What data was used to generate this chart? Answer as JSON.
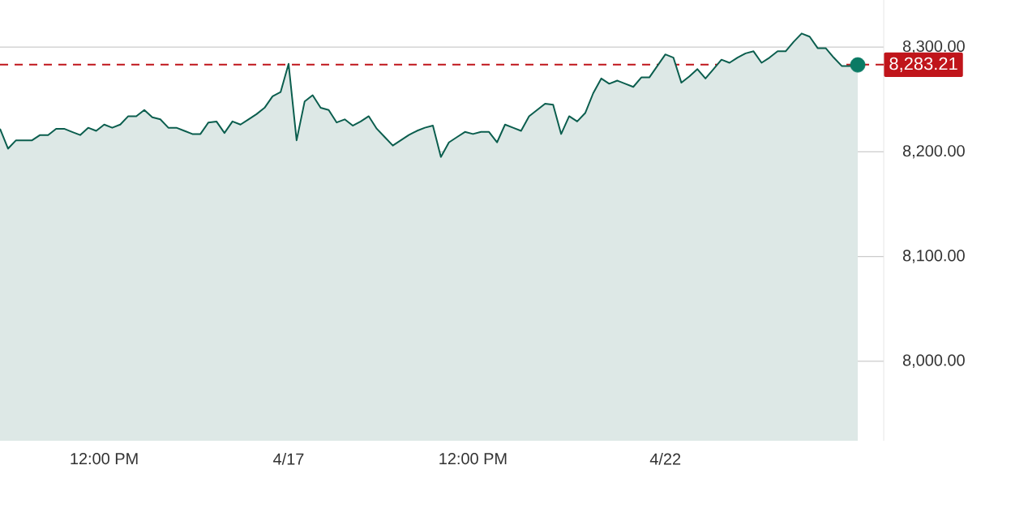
{
  "chart_data": {
    "type": "area",
    "categories": [
      null,
      null,
      null,
      null,
      null,
      null,
      null,
      null,
      null,
      null,
      null,
      null,
      null,
      "12:00 PM",
      null,
      null,
      null,
      null,
      null,
      null,
      null,
      null,
      null,
      null,
      null,
      null,
      null,
      null,
      null,
      null,
      null,
      null,
      null,
      null,
      null,
      null,
      "4/17",
      null,
      null,
      null,
      null,
      null,
      null,
      null,
      null,
      null,
      null,
      null,
      null,
      null,
      null,
      null,
      null,
      null,
      null,
      null,
      null,
      null,
      null,
      "12:00 PM",
      null,
      null,
      null,
      null,
      null,
      null,
      null,
      null,
      null,
      null,
      null,
      null,
      null,
      null,
      null,
      null,
      null,
      null,
      null,
      null,
      null,
      null,
      null,
      "4/22",
      null,
      null,
      null,
      null,
      null,
      null,
      null,
      null,
      null,
      null,
      null,
      null,
      null,
      null,
      null,
      null,
      null,
      null,
      null,
      null,
      null,
      null,
      null,
      null
    ],
    "series": [
      {
        "color": "#0b5e4e",
        "values": [
          8222,
          8203,
          8211,
          8211,
          8211,
          8216,
          8216,
          8222,
          8222,
          8219,
          8216,
          8223,
          8220,
          8226,
          8223,
          8226,
          8234,
          8234,
          8240,
          8233,
          8231,
          8223,
          8223,
          8220,
          8217,
          8217,
          8228,
          8229,
          8218,
          8229,
          8226,
          8231,
          8236,
          8242,
          8253,
          8257,
          8284,
          8211,
          8248,
          8254,
          8242,
          8240,
          8228,
          8231,
          8225,
          8229,
          8234,
          8222,
          8214,
          8206,
          8211,
          8216,
          8220,
          8223,
          8225,
          8195,
          8209,
          8214,
          8219,
          8217,
          8219,
          8219,
          8209,
          8226,
          8223,
          8220,
          8234,
          8240,
          8246,
          8245,
          8217,
          8234,
          8229,
          8237,
          8256,
          8270,
          8265,
          8268,
          8265,
          8262,
          8271,
          8271,
          8282,
          8293,
          8290,
          8266,
          8272,
          8279,
          8270,
          8279,
          8288,
          8285,
          8290,
          8294,
          8296,
          8285,
          8290,
          8296,
          8296,
          8305,
          8313,
          8310,
          8299,
          8299,
          8290,
          8282,
          8282,
          8283
        ]
      },
      {
        "type": "scatter",
        "color": "#0a7a64",
        "values": [
          null,
          null,
          null,
          null,
          null,
          null,
          null,
          null,
          null,
          null,
          null,
          null,
          null,
          null,
          null,
          null,
          null,
          null,
          null,
          null,
          null,
          null,
          null,
          null,
          null,
          null,
          null,
          null,
          null,
          null,
          null,
          null,
          null,
          null,
          null,
          null,
          null,
          null,
          null,
          null,
          null,
          null,
          null,
          null,
          null,
          null,
          null,
          null,
          null,
          null,
          null,
          null,
          null,
          null,
          null,
          null,
          null,
          null,
          null,
          null,
          null,
          null,
          null,
          null,
          null,
          null,
          null,
          null,
          null,
          null,
          null,
          null,
          null,
          null,
          null,
          null,
          null,
          null,
          null,
          null,
          null,
          null,
          null,
          null,
          null,
          null,
          null,
          null,
          null,
          null,
          null,
          null,
          null,
          null,
          null,
          null,
          null,
          null,
          null,
          null,
          null,
          null,
          null,
          null,
          null,
          null,
          null,
          8283
        ]
      }
    ],
    "ylim": [
      7924,
      8345
    ],
    "yticks": [
      {
        "value": 8000,
        "label": "8,000.00"
      },
      {
        "value": 8100,
        "label": "8,100.00"
      },
      {
        "value": 8200,
        "label": "8,200.00"
      },
      {
        "value": 8300,
        "label": "8,300.00"
      }
    ],
    "grid": "y",
    "ref_lines": [
      {
        "axis": "y",
        "value": 8283.21,
        "label": "8,283.21",
        "color": "#c0151b",
        "line_style": "dashed"
      }
    ]
  }
}
